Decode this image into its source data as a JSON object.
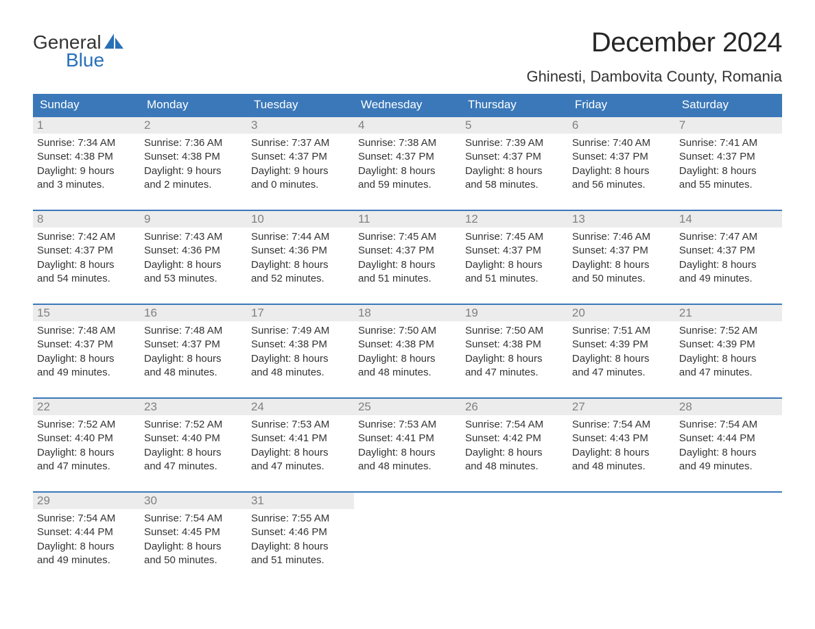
{
  "logo": {
    "word1": "General",
    "word2": "Blue",
    "word1_color": "#333333",
    "word2_color": "#2770b8",
    "sail_color": "#2770b8"
  },
  "title": "December 2024",
  "location": "Ghinesti, Dambovita County, Romania",
  "colors": {
    "header_bg": "#3a78b9",
    "header_text": "#ffffff",
    "daynum_bg": "#ececec",
    "daynum_text": "#808080",
    "body_text": "#333333",
    "week_border": "#3a78b9",
    "page_bg": "#ffffff"
  },
  "typography": {
    "title_fontsize": 40,
    "location_fontsize": 22,
    "dayhead_fontsize": 17,
    "daynum_fontsize": 17,
    "cell_fontsize": 15
  },
  "day_headers": [
    "Sunday",
    "Monday",
    "Tuesday",
    "Wednesday",
    "Thursday",
    "Friday",
    "Saturday"
  ],
  "weeks": [
    [
      {
        "num": "1",
        "sunrise": "Sunrise: 7:34 AM",
        "sunset": "Sunset: 4:38 PM",
        "dl1": "Daylight: 9 hours",
        "dl2": "and 3 minutes."
      },
      {
        "num": "2",
        "sunrise": "Sunrise: 7:36 AM",
        "sunset": "Sunset: 4:38 PM",
        "dl1": "Daylight: 9 hours",
        "dl2": "and 2 minutes."
      },
      {
        "num": "3",
        "sunrise": "Sunrise: 7:37 AM",
        "sunset": "Sunset: 4:37 PM",
        "dl1": "Daylight: 9 hours",
        "dl2": "and 0 minutes."
      },
      {
        "num": "4",
        "sunrise": "Sunrise: 7:38 AM",
        "sunset": "Sunset: 4:37 PM",
        "dl1": "Daylight: 8 hours",
        "dl2": "and 59 minutes."
      },
      {
        "num": "5",
        "sunrise": "Sunrise: 7:39 AM",
        "sunset": "Sunset: 4:37 PM",
        "dl1": "Daylight: 8 hours",
        "dl2": "and 58 minutes."
      },
      {
        "num": "6",
        "sunrise": "Sunrise: 7:40 AM",
        "sunset": "Sunset: 4:37 PM",
        "dl1": "Daylight: 8 hours",
        "dl2": "and 56 minutes."
      },
      {
        "num": "7",
        "sunrise": "Sunrise: 7:41 AM",
        "sunset": "Sunset: 4:37 PM",
        "dl1": "Daylight: 8 hours",
        "dl2": "and 55 minutes."
      }
    ],
    [
      {
        "num": "8",
        "sunrise": "Sunrise: 7:42 AM",
        "sunset": "Sunset: 4:37 PM",
        "dl1": "Daylight: 8 hours",
        "dl2": "and 54 minutes."
      },
      {
        "num": "9",
        "sunrise": "Sunrise: 7:43 AM",
        "sunset": "Sunset: 4:36 PM",
        "dl1": "Daylight: 8 hours",
        "dl2": "and 53 minutes."
      },
      {
        "num": "10",
        "sunrise": "Sunrise: 7:44 AM",
        "sunset": "Sunset: 4:36 PM",
        "dl1": "Daylight: 8 hours",
        "dl2": "and 52 minutes."
      },
      {
        "num": "11",
        "sunrise": "Sunrise: 7:45 AM",
        "sunset": "Sunset: 4:37 PM",
        "dl1": "Daylight: 8 hours",
        "dl2": "and 51 minutes."
      },
      {
        "num": "12",
        "sunrise": "Sunrise: 7:45 AM",
        "sunset": "Sunset: 4:37 PM",
        "dl1": "Daylight: 8 hours",
        "dl2": "and 51 minutes."
      },
      {
        "num": "13",
        "sunrise": "Sunrise: 7:46 AM",
        "sunset": "Sunset: 4:37 PM",
        "dl1": "Daylight: 8 hours",
        "dl2": "and 50 minutes."
      },
      {
        "num": "14",
        "sunrise": "Sunrise: 7:47 AM",
        "sunset": "Sunset: 4:37 PM",
        "dl1": "Daylight: 8 hours",
        "dl2": "and 49 minutes."
      }
    ],
    [
      {
        "num": "15",
        "sunrise": "Sunrise: 7:48 AM",
        "sunset": "Sunset: 4:37 PM",
        "dl1": "Daylight: 8 hours",
        "dl2": "and 49 minutes."
      },
      {
        "num": "16",
        "sunrise": "Sunrise: 7:48 AM",
        "sunset": "Sunset: 4:37 PM",
        "dl1": "Daylight: 8 hours",
        "dl2": "and 48 minutes."
      },
      {
        "num": "17",
        "sunrise": "Sunrise: 7:49 AM",
        "sunset": "Sunset: 4:38 PM",
        "dl1": "Daylight: 8 hours",
        "dl2": "and 48 minutes."
      },
      {
        "num": "18",
        "sunrise": "Sunrise: 7:50 AM",
        "sunset": "Sunset: 4:38 PM",
        "dl1": "Daylight: 8 hours",
        "dl2": "and 48 minutes."
      },
      {
        "num": "19",
        "sunrise": "Sunrise: 7:50 AM",
        "sunset": "Sunset: 4:38 PM",
        "dl1": "Daylight: 8 hours",
        "dl2": "and 47 minutes."
      },
      {
        "num": "20",
        "sunrise": "Sunrise: 7:51 AM",
        "sunset": "Sunset: 4:39 PM",
        "dl1": "Daylight: 8 hours",
        "dl2": "and 47 minutes."
      },
      {
        "num": "21",
        "sunrise": "Sunrise: 7:52 AM",
        "sunset": "Sunset: 4:39 PM",
        "dl1": "Daylight: 8 hours",
        "dl2": "and 47 minutes."
      }
    ],
    [
      {
        "num": "22",
        "sunrise": "Sunrise: 7:52 AM",
        "sunset": "Sunset: 4:40 PM",
        "dl1": "Daylight: 8 hours",
        "dl2": "and 47 minutes."
      },
      {
        "num": "23",
        "sunrise": "Sunrise: 7:52 AM",
        "sunset": "Sunset: 4:40 PM",
        "dl1": "Daylight: 8 hours",
        "dl2": "and 47 minutes."
      },
      {
        "num": "24",
        "sunrise": "Sunrise: 7:53 AM",
        "sunset": "Sunset: 4:41 PM",
        "dl1": "Daylight: 8 hours",
        "dl2": "and 47 minutes."
      },
      {
        "num": "25",
        "sunrise": "Sunrise: 7:53 AM",
        "sunset": "Sunset: 4:41 PM",
        "dl1": "Daylight: 8 hours",
        "dl2": "and 48 minutes."
      },
      {
        "num": "26",
        "sunrise": "Sunrise: 7:54 AM",
        "sunset": "Sunset: 4:42 PM",
        "dl1": "Daylight: 8 hours",
        "dl2": "and 48 minutes."
      },
      {
        "num": "27",
        "sunrise": "Sunrise: 7:54 AM",
        "sunset": "Sunset: 4:43 PM",
        "dl1": "Daylight: 8 hours",
        "dl2": "and 48 minutes."
      },
      {
        "num": "28",
        "sunrise": "Sunrise: 7:54 AM",
        "sunset": "Sunset: 4:44 PM",
        "dl1": "Daylight: 8 hours",
        "dl2": "and 49 minutes."
      }
    ],
    [
      {
        "num": "29",
        "sunrise": "Sunrise: 7:54 AM",
        "sunset": "Sunset: 4:44 PM",
        "dl1": "Daylight: 8 hours",
        "dl2": "and 49 minutes."
      },
      {
        "num": "30",
        "sunrise": "Sunrise: 7:54 AM",
        "sunset": "Sunset: 4:45 PM",
        "dl1": "Daylight: 8 hours",
        "dl2": "and 50 minutes."
      },
      {
        "num": "31",
        "sunrise": "Sunrise: 7:55 AM",
        "sunset": "Sunset: 4:46 PM",
        "dl1": "Daylight: 8 hours",
        "dl2": "and 51 minutes."
      },
      null,
      null,
      null,
      null
    ]
  ]
}
